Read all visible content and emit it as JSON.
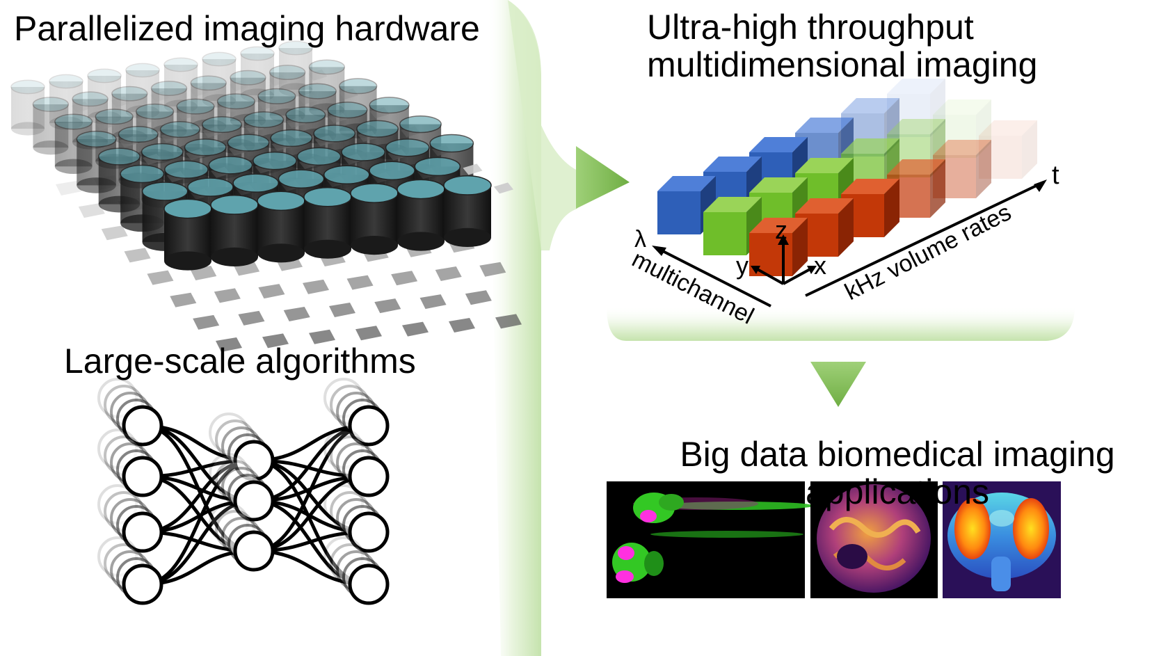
{
  "titles": {
    "hardware": "Parallelized imaging hardware",
    "algorithms": "Large-scale algorithms",
    "throughput_line1": "Ultra-high throughput",
    "throughput_line2": "multidimensional imaging",
    "applications_line1": "Big data biomedical imaging",
    "applications_line2": "applications"
  },
  "axes": {
    "t": "t",
    "lambda": "λ",
    "x": "x",
    "y": "y",
    "z": "z",
    "kHz": "kHz volume rates",
    "multichannel": "multichannel"
  },
  "colors": {
    "arrow_green": "#86c063",
    "arrow_light": "#e6f3da",
    "lens_teal": "#5fa3ad",
    "cube_blue": "#2e5fb8",
    "cube_green": "#6fbe2a",
    "cube_red": "#c33808"
  },
  "panels": [
    {
      "name": "zebrafish",
      "description_icon": "zebrafish-fluorescence-image"
    },
    {
      "name": "organ",
      "description_icon": "organ-volume-render"
    },
    {
      "name": "insect-head",
      "description_icon": "insect-head-heatmap"
    }
  ]
}
